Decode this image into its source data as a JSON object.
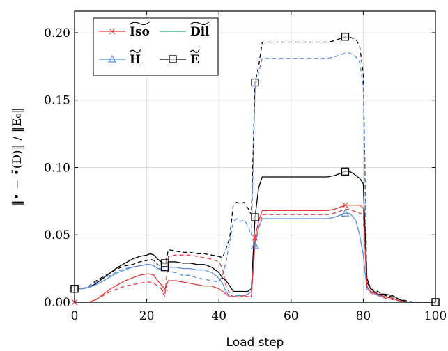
{
  "chart_data": {
    "type": "line",
    "xlabel": "Load step",
    "ylabel": "‖• − •̃(D)‖ / ‖E₀‖",
    "xlim": [
      0,
      100
    ],
    "ylim": [
      0,
      0.216
    ],
    "xticks": [
      0,
      20,
      40,
      60,
      80,
      100
    ],
    "xtick_labels": [
      "0",
      "20",
      "40",
      "60",
      "80",
      "100"
    ],
    "yticks": [
      0,
      0.05,
      0.1,
      0.15,
      0.2
    ],
    "ytick_labels": [
      "0.00",
      "0.05",
      "0.10",
      "0.15",
      "0.20"
    ],
    "grid": true,
    "legend_position": "top-left",
    "colors": {
      "iso": "#e8383d",
      "dil": "#1fae83",
      "h": "#5b8ee6",
      "e": "#000000"
    },
    "legend": [
      {
        "key": "iso",
        "label": "Iso",
        "marker": "x"
      },
      {
        "key": "dil",
        "label": "Dil",
        "marker": "none"
      },
      {
        "key": "h",
        "label": "H",
        "marker": "triangle"
      },
      {
        "key": "e",
        "label": "E",
        "marker": "square"
      }
    ],
    "series": [
      {
        "key": "e",
        "style": "dashed",
        "x": [
          0,
          2,
          4,
          6,
          8,
          10,
          12,
          14,
          16,
          18,
          20,
          21,
          22,
          23,
          24,
          25,
          26,
          28,
          30,
          32,
          34,
          36,
          38,
          40,
          41,
          42,
          43,
          44,
          45,
          46,
          47,
          48,
          49,
          50,
          51,
          52,
          54,
          56,
          58,
          60,
          62,
          64,
          66,
          68,
          70,
          72,
          74,
          75,
          76,
          77,
          78,
          79,
          80,
          81,
          82,
          84,
          86,
          88,
          90,
          92,
          94,
          96,
          98,
          100
        ],
        "y": [
          0.01,
          0.01,
          0.012,
          0.016,
          0.019,
          0.022,
          0.025,
          0.027,
          0.028,
          0.03,
          0.031,
          0.032,
          0.031,
          0.028,
          0.027,
          0.026,
          0.039,
          0.038,
          0.037,
          0.037,
          0.036,
          0.036,
          0.035,
          0.034,
          0.033,
          0.04,
          0.048,
          0.073,
          0.074,
          0.073,
          0.074,
          0.07,
          0.065,
          0.163,
          0.175,
          0.193,
          0.193,
          0.193,
          0.193,
          0.193,
          0.193,
          0.193,
          0.193,
          0.193,
          0.193,
          0.194,
          0.196,
          0.197,
          0.197,
          0.196,
          0.195,
          0.19,
          0.17,
          0.015,
          0.01,
          0.008,
          0.005,
          0.004,
          0.002,
          0.001,
          0.0,
          0.0,
          0.0,
          0.0
        ]
      },
      {
        "key": "h",
        "style": "dashed",
        "x": [
          0,
          2,
          4,
          6,
          8,
          10,
          12,
          14,
          16,
          18,
          20,
          21,
          22,
          23,
          24,
          25,
          26,
          28,
          30,
          32,
          34,
          36,
          38,
          40,
          41,
          42,
          43,
          44,
          45,
          46,
          47,
          48,
          49,
          50,
          51,
          52,
          54,
          56,
          58,
          60,
          62,
          64,
          66,
          68,
          70,
          72,
          74,
          75,
          76,
          77,
          78,
          79,
          80,
          81,
          82,
          84,
          86,
          88,
          90,
          92,
          94,
          96,
          98,
          100
        ],
        "y": [
          0.01,
          0.01,
          0.012,
          0.015,
          0.018,
          0.02,
          0.023,
          0.025,
          0.026,
          0.027,
          0.028,
          0.028,
          0.027,
          0.025,
          0.024,
          0.024,
          0.023,
          0.022,
          0.02,
          0.02,
          0.018,
          0.017,
          0.016,
          0.015,
          0.02,
          0.03,
          0.045,
          0.06,
          0.062,
          0.06,
          0.061,
          0.057,
          0.05,
          0.158,
          0.17,
          0.181,
          0.181,
          0.181,
          0.181,
          0.181,
          0.181,
          0.181,
          0.181,
          0.181,
          0.181,
          0.182,
          0.184,
          0.185,
          0.185,
          0.184,
          0.182,
          0.178,
          0.16,
          0.012,
          0.008,
          0.006,
          0.004,
          0.003,
          0.001,
          0.0,
          0.0,
          0.0,
          0.0,
          0.0
        ]
      },
      {
        "key": "iso",
        "style": "dashed",
        "x": [
          0,
          2,
          4,
          6,
          8,
          10,
          12,
          14,
          16,
          18,
          20,
          21,
          22,
          23,
          24,
          25,
          26,
          28,
          30,
          32,
          34,
          36,
          38,
          40,
          41,
          42,
          43,
          44,
          45,
          46,
          47,
          48,
          49,
          50,
          51,
          52,
          54,
          56,
          58,
          60,
          62,
          64,
          66,
          68,
          70,
          72,
          74,
          75,
          76,
          77,
          78,
          79,
          80,
          81,
          82,
          84,
          86,
          88,
          90,
          92,
          94,
          96,
          98,
          100
        ],
        "y": [
          0.0,
          0.0,
          0.0,
          0.002,
          0.005,
          0.008,
          0.01,
          0.012,
          0.013,
          0.014,
          0.015,
          0.015,
          0.014,
          0.012,
          0.01,
          0.004,
          0.034,
          0.035,
          0.035,
          0.035,
          0.034,
          0.033,
          0.032,
          0.03,
          0.025,
          0.012,
          0.006,
          0.004,
          0.004,
          0.004,
          0.005,
          0.004,
          0.004,
          0.045,
          0.055,
          0.065,
          0.065,
          0.065,
          0.065,
          0.065,
          0.065,
          0.065,
          0.065,
          0.065,
          0.065,
          0.066,
          0.068,
          0.069,
          0.069,
          0.068,
          0.067,
          0.066,
          0.065,
          0.012,
          0.007,
          0.005,
          0.003,
          0.002,
          0.001,
          0.0,
          0.0,
          0.0,
          0.0,
          0.0
        ]
      },
      {
        "key": "e",
        "style": "solid",
        "x": [
          0,
          2,
          4,
          6,
          8,
          10,
          12,
          14,
          16,
          18,
          20,
          21,
          22,
          23,
          24,
          25,
          26,
          28,
          30,
          32,
          34,
          36,
          38,
          40,
          41,
          42,
          43,
          44,
          45,
          46,
          47,
          48,
          49,
          50,
          51,
          52,
          54,
          56,
          58,
          60,
          62,
          64,
          66,
          68,
          70,
          72,
          74,
          75,
          76,
          77,
          78,
          79,
          80,
          81,
          82,
          84,
          86,
          88,
          90,
          92,
          94,
          96,
          98,
          100
        ],
        "y": [
          0.01,
          0.01,
          0.011,
          0.014,
          0.018,
          0.022,
          0.026,
          0.029,
          0.032,
          0.034,
          0.035,
          0.036,
          0.035,
          0.032,
          0.03,
          0.029,
          0.03,
          0.03,
          0.029,
          0.029,
          0.028,
          0.028,
          0.026,
          0.022,
          0.018,
          0.016,
          0.012,
          0.008,
          0.008,
          0.008,
          0.008,
          0.008,
          0.01,
          0.063,
          0.085,
          0.093,
          0.093,
          0.093,
          0.093,
          0.093,
          0.093,
          0.093,
          0.093,
          0.093,
          0.093,
          0.094,
          0.096,
          0.097,
          0.097,
          0.096,
          0.094,
          0.092,
          0.088,
          0.018,
          0.01,
          0.006,
          0.006,
          0.005,
          0.002,
          0.0,
          0.0,
          0.0,
          0.0,
          0.0
        ]
      },
      {
        "key": "h",
        "style": "solid",
        "marker": "triangle",
        "x": [
          0,
          2,
          4,
          6,
          8,
          10,
          12,
          14,
          16,
          18,
          20,
          21,
          22,
          23,
          24,
          25,
          26,
          28,
          30,
          32,
          34,
          36,
          38,
          40,
          41,
          42,
          43,
          44,
          45,
          46,
          47,
          48,
          49,
          50,
          51,
          52,
          54,
          56,
          58,
          60,
          62,
          64,
          66,
          68,
          70,
          72,
          74,
          75,
          76,
          77,
          78,
          79,
          80,
          81,
          82,
          84,
          86,
          88,
          90,
          92,
          94,
          96,
          98,
          100
        ],
        "y": [
          0.01,
          0.01,
          0.011,
          0.013,
          0.016,
          0.019,
          0.022,
          0.024,
          0.026,
          0.027,
          0.028,
          0.028,
          0.027,
          0.025,
          0.025,
          0.026,
          0.026,
          0.026,
          0.025,
          0.025,
          0.024,
          0.024,
          0.022,
          0.018,
          0.014,
          0.008,
          0.004,
          0.004,
          0.005,
          0.005,
          0.005,
          0.006,
          0.008,
          0.042,
          0.055,
          0.062,
          0.062,
          0.062,
          0.062,
          0.062,
          0.062,
          0.062,
          0.062,
          0.062,
          0.062,
          0.063,
          0.065,
          0.066,
          0.066,
          0.064,
          0.06,
          0.05,
          0.035,
          0.01,
          0.008,
          0.005,
          0.004,
          0.003,
          0.001,
          0.0,
          0.0,
          0.0,
          0.0,
          0.0
        ]
      },
      {
        "key": "iso",
        "style": "solid",
        "marker": "x",
        "x": [
          0,
          2,
          4,
          6,
          8,
          10,
          12,
          14,
          16,
          18,
          20,
          21,
          22,
          23,
          24,
          25,
          26,
          28,
          30,
          32,
          34,
          36,
          38,
          40,
          41,
          42,
          43,
          44,
          45,
          46,
          47,
          48,
          49,
          50,
          51,
          52,
          54,
          56,
          58,
          60,
          62,
          64,
          66,
          68,
          70,
          72,
          74,
          75,
          76,
          77,
          78,
          79,
          80,
          81,
          82,
          84,
          86,
          88,
          90,
          92,
          94,
          96,
          98,
          100
        ],
        "y": [
          0.0,
          0.0,
          0.0,
          0.002,
          0.006,
          0.01,
          0.013,
          0.016,
          0.018,
          0.02,
          0.021,
          0.021,
          0.02,
          0.016,
          0.013,
          0.01,
          0.016,
          0.016,
          0.015,
          0.014,
          0.013,
          0.012,
          0.012,
          0.01,
          0.008,
          0.006,
          0.004,
          0.004,
          0.004,
          0.004,
          0.005,
          0.004,
          0.004,
          0.048,
          0.06,
          0.068,
          0.068,
          0.068,
          0.068,
          0.068,
          0.068,
          0.068,
          0.068,
          0.068,
          0.068,
          0.069,
          0.071,
          0.072,
          0.072,
          0.072,
          0.072,
          0.072,
          0.07,
          0.012,
          0.008,
          0.006,
          0.004,
          0.003,
          0.001,
          0.0,
          0.0,
          0.0,
          0.0,
          0.0
        ]
      },
      {
        "key": "dil",
        "style": "solid",
        "x": [
          0,
          100
        ],
        "y": [
          0.0,
          0.0
        ]
      }
    ]
  }
}
